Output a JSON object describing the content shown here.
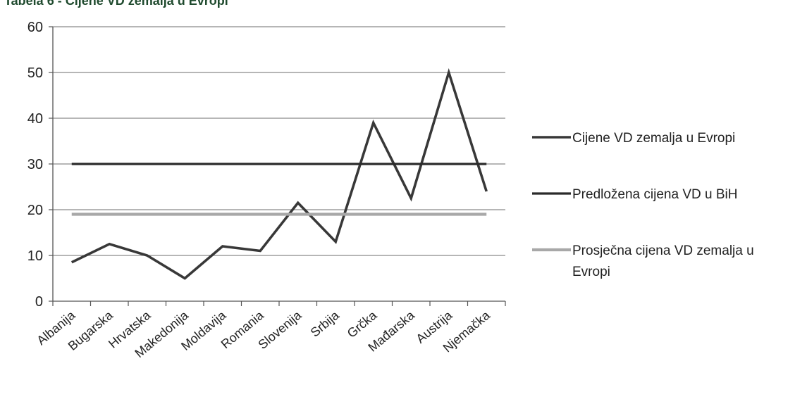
{
  "page": {
    "title": "Tabela 6 - Cijene VD zemalja u Evropi"
  },
  "chart_data": {
    "type": "line",
    "categories": [
      "Albanija",
      "Bugarska",
      "Hrvatska",
      "Makedonija",
      "Moldavija",
      "Romania",
      "Slovenija",
      "Srbija",
      "Grčka",
      "Mađarska",
      "Austrija",
      "Njemačka"
    ],
    "series": [
      {
        "name": "Cijene VD zemalja u Evropi",
        "values": [
          8.5,
          12.5,
          10,
          5,
          12,
          11,
          21.5,
          13,
          39,
          22.5,
          50,
          24
        ],
        "color": "#383838"
      },
      {
        "name": "Predložena cijena VD  u BiH",
        "values": [
          30,
          30,
          30,
          30,
          30,
          30,
          30,
          30,
          30,
          30,
          30,
          30
        ],
        "color": "#2a2a2a"
      },
      {
        "name": "Prosječna cijena VD zemalja u Evropi",
        "values": [
          19,
          19,
          19,
          19,
          19,
          19,
          19,
          19,
          19,
          19,
          19,
          19
        ],
        "color": "#a8a8a8"
      }
    ],
    "y_ticks": [
      "0",
      "10",
      "20",
      "30",
      "40",
      "50",
      "60"
    ],
    "ylim": [
      0,
      60
    ],
    "grid": true,
    "legend_position": "right"
  }
}
